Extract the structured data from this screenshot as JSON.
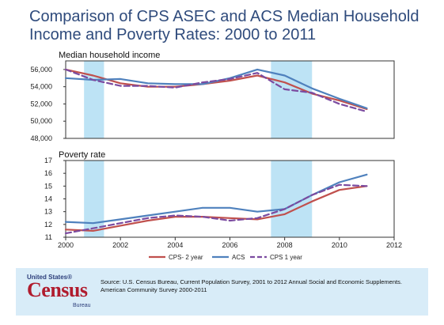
{
  "title_line1": "Comparison of CPS ASEC and ACS Median Household",
  "title_line2": "Income and Poverty Rates:  2000 to 2011",
  "colors": {
    "cps_2year": "#c0504d",
    "acs": "#4f81bd",
    "cps_1year": "#7b4ba0",
    "recession": "#bde3f5",
    "title": "#2f4b7c"
  },
  "recessions": [
    [
      2000.67,
      2001.4
    ],
    [
      2007.5,
      2009.0
    ]
  ],
  "chart_data": [
    {
      "type": "line",
      "title": "Median household income",
      "xlim": [
        2000,
        2012
      ],
      "ylim": [
        48000,
        57000
      ],
      "yticks": [
        "56,000",
        "54,000",
        "52,000",
        "50,000",
        "48,000"
      ],
      "ytick_values": [
        56000,
        54000,
        52000,
        50000,
        48000
      ],
      "x": [
        2000,
        2001,
        2002,
        2003,
        2004,
        2005,
        2006,
        2007,
        2008,
        2009,
        2010,
        2011
      ],
      "series": [
        {
          "name": "CPS- 2 year",
          "style": "solid",
          "color": "#c0504d",
          "values": [
            56000,
            55300,
            54400,
            54000,
            54000,
            54300,
            54700,
            55300,
            54500,
            53200,
            52400,
            51400
          ]
        },
        {
          "name": "ACS",
          "style": "solid",
          "color": "#4f81bd",
          "values": [
            55000,
            54800,
            54900,
            54400,
            54300,
            54300,
            55000,
            56000,
            55300,
            53800,
            52600,
            51500
          ]
        },
        {
          "name": "CPS 1 year",
          "style": "dashed",
          "color": "#7b4ba0",
          "values": [
            56000,
            54800,
            54100,
            54100,
            53900,
            54500,
            54900,
            55600,
            53700,
            53300,
            52000,
            51100
          ]
        }
      ]
    },
    {
      "type": "line",
      "title": "Poverty rate",
      "xlim": [
        2000,
        2012
      ],
      "ylim": [
        11,
        17
      ],
      "yticks": [
        "17",
        "16",
        "15",
        "14",
        "13",
        "12",
        "11"
      ],
      "ytick_values": [
        17,
        16,
        15,
        14,
        13,
        12,
        11
      ],
      "x": [
        2000,
        2001,
        2002,
        2003,
        2004,
        2005,
        2006,
        2007,
        2008,
        2009,
        2010,
        2011
      ],
      "xticks": [
        "2000",
        "2002",
        "2004",
        "2006",
        "2008",
        "2010",
        "2012"
      ],
      "xtick_values": [
        2000,
        2002,
        2004,
        2006,
        2008,
        2010,
        2012
      ],
      "series": [
        {
          "name": "CPS- 2 year",
          "style": "solid",
          "color": "#c0504d",
          "values": [
            11.6,
            11.5,
            11.9,
            12.3,
            12.6,
            12.6,
            12.5,
            12.4,
            12.8,
            13.8,
            14.7,
            15.0
          ]
        },
        {
          "name": "ACS",
          "style": "solid",
          "color": "#4f81bd",
          "values": [
            12.2,
            12.1,
            12.4,
            12.7,
            13.0,
            13.3,
            13.3,
            13.0,
            13.2,
            14.3,
            15.3,
            15.9
          ]
        },
        {
          "name": "CPS 1 year",
          "style": "dashed",
          "color": "#7b4ba0",
          "values": [
            11.3,
            11.7,
            12.1,
            12.5,
            12.7,
            12.6,
            12.3,
            12.5,
            13.2,
            14.3,
            15.1,
            15.0
          ]
        }
      ]
    }
  ],
  "legend": [
    "CPS- 2 year",
    "ACS",
    "CPS 1 year"
  ],
  "footer": {
    "logo_top": "United States®",
    "logo_main": "Census",
    "logo_bottom": "Bureau",
    "source": "Source: U.S. Census Bureau, Current Population Survey, 2001 to 2012 Annual Social and Economic Supplements.  American Community Survey 2000-2011"
  }
}
